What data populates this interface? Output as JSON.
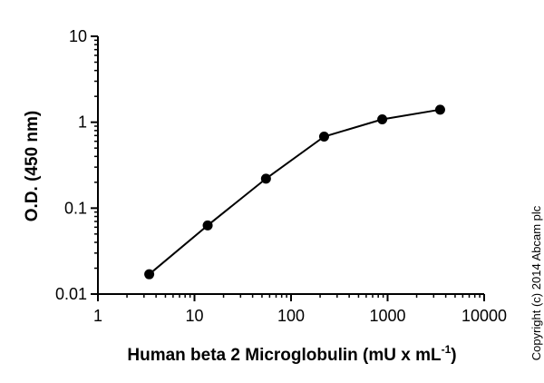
{
  "chart_data": {
    "type": "line",
    "xscale": "log",
    "yscale": "log",
    "xlim": [
      1,
      10000
    ],
    "ylim": [
      0.01,
      10
    ],
    "x_ticks": [
      "1",
      "10",
      "100",
      "1000",
      "10000"
    ],
    "y_ticks": [
      "0.01",
      "0.1",
      "1",
      "10"
    ],
    "xlabel": "Human beta 2 Microglobulin (mU x mL",
    "xlabel_sup": "-1",
    "xlabel_close": ")",
    "ylabel": "O.D. (450 nm)",
    "grid": false,
    "series": [
      {
        "x": [
          3.4,
          13.7,
          55,
          220,
          880,
          3500
        ],
        "y": [
          0.017,
          0.063,
          0.22,
          0.68,
          1.08,
          1.4
        ],
        "color": "#000000",
        "marker": "circle"
      }
    ]
  },
  "copyright": "Copyright (c) 2014 Abcam plc"
}
